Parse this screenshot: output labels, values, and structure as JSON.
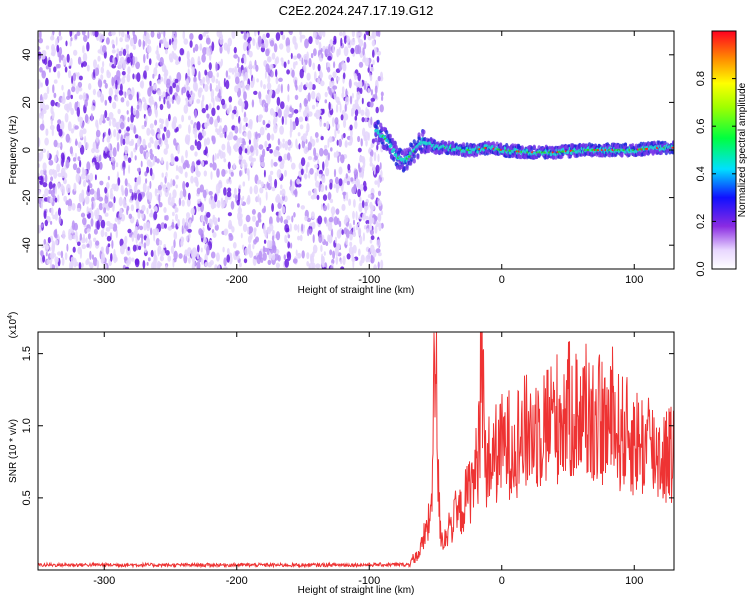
{
  "title": "C2E2.2024.247.17.19.G12",
  "chart_data": [
    {
      "type": "heatmap",
      "xlabel": "Height of straight line (km)",
      "ylabel": "Frequency (Hz)",
      "xlim": [
        -350,
        130
      ],
      "ylim": [
        -50,
        50
      ],
      "xticks": [
        -300,
        -200,
        -100,
        0,
        100
      ],
      "yticks": [
        -40,
        -20,
        0,
        20,
        40
      ],
      "signal_track": {
        "x": [
          -95,
          -90,
          -85,
          -80,
          -75,
          -70,
          -65,
          -60,
          -55,
          -50,
          -40,
          -30,
          -20,
          -10,
          0,
          20,
          40,
          60,
          80,
          100,
          120,
          130
        ],
        "freq_hz": [
          8,
          6,
          3,
          -2,
          -5,
          -3,
          0,
          4,
          3,
          1,
          1,
          0,
          0,
          1,
          0,
          -1,
          -1,
          0,
          0,
          0,
          1,
          1
        ]
      },
      "noise_region_x": [
        -350,
        -90
      ],
      "colorbar": {
        "label": "Normalized spectral amplitude",
        "range": [
          0,
          1
        ],
        "ticks": [
          "0.0",
          "0.2",
          "0.4",
          "0.6",
          "0.8"
        ]
      },
      "colors": {
        "noise_light": "#e4d6fb",
        "noise_mid": "#b890f5",
        "noise_dark": "#6a1ee0",
        "signal_blue": "#1e28d8",
        "signal_cyan": "#20d6d0",
        "signal_green": "#30d030",
        "signal_red": "#ff2020"
      }
    },
    {
      "type": "line",
      "xlabel": "Height of straight line (km)",
      "ylabel": "SNR (10 * v/v)",
      "y_multiplier": "(x10",
      "y_multiplier_exp": "4",
      "xlim": [
        -350,
        130
      ],
      "ylim": [
        0,
        16500
      ],
      "xticks": [
        -300,
        -200,
        -100,
        0,
        100
      ],
      "yticks": [
        5000,
        10000,
        15000
      ],
      "ytick_labels": [
        "0.5",
        "1.0",
        "1.5"
      ],
      "series": [
        {
          "color": "#ee3333",
          "x": [
            -350,
            -300,
            -250,
            -200,
            -150,
            -100,
            -70,
            -62,
            -58,
            -54,
            -52,
            -50,
            -48,
            -46,
            -44,
            -42,
            -40,
            -35,
            -30,
            -25,
            -20,
            -17,
            -15,
            -13,
            -10,
            -5,
            0,
            10,
            20,
            30,
            40,
            50,
            60,
            70,
            80,
            90,
            100,
            110,
            120,
            130
          ],
          "y": [
            350,
            360,
            340,
            350,
            340,
            360,
            380,
            1200,
            2500,
            3500,
            8500,
            16000,
            6000,
            2500,
            2000,
            2500,
            3000,
            3500,
            4200,
            5500,
            6500,
            9000,
            17000,
            7500,
            7500,
            8000,
            8500,
            9000,
            9500,
            10000,
            10500,
            11000,
            10800,
            10500,
            10000,
            9500,
            9000,
            8500,
            8000,
            8000
          ]
        }
      ]
    }
  ]
}
